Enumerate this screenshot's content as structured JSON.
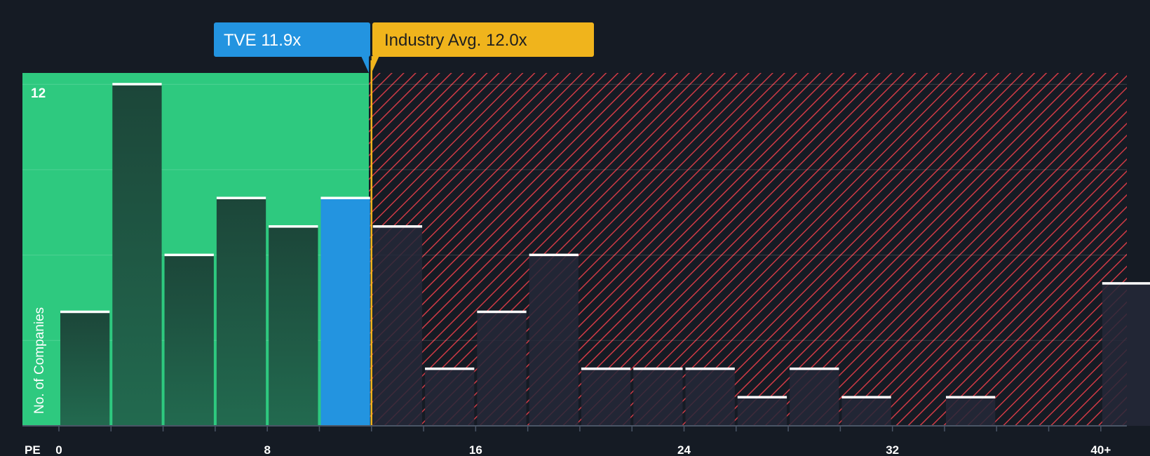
{
  "chart_data": {
    "type": "bar",
    "title": "",
    "xlabel": "PE",
    "ylabel": "No. of Companies",
    "bin_width": 2,
    "bins_start": [
      0,
      2,
      4,
      6,
      8,
      10,
      12,
      14,
      16,
      18,
      20,
      22,
      24,
      26,
      28,
      30,
      32,
      34,
      36,
      38,
      40
    ],
    "values": [
      4,
      12,
      6,
      8,
      7,
      8,
      7,
      2,
      4,
      6,
      2,
      2,
      2,
      1,
      2,
      1,
      0,
      1,
      0,
      0,
      5
    ],
    "highlight_index": 5,
    "x_ticks": [
      {
        "value": 0,
        "label": "0"
      },
      {
        "value": 8,
        "label": "8"
      },
      {
        "value": 16,
        "label": "16"
      },
      {
        "value": 24,
        "label": "24"
      },
      {
        "value": 32,
        "label": "32"
      },
      {
        "value": 40,
        "label": "40+"
      }
    ],
    "y_ticks": [
      {
        "value": 12,
        "label": "12"
      }
    ],
    "ylim": [
      0,
      12.4
    ],
    "xlim": [
      -1.4,
      41
    ],
    "company": {
      "name": "TVE",
      "pe": 11.9,
      "label": "TVE 11.9x"
    },
    "industry": {
      "name": "Industry Avg.",
      "pe": 12.0,
      "label": "Industry Avg. 12.0x"
    },
    "colors": {
      "background": "#151b24",
      "undervalued_zone": "#2ec97f",
      "bar_dark": "#1e4b3f",
      "bar_highlight": "#2394e0",
      "overvalued_hatch": "#cf3a45",
      "overvalued_bar": "#252838",
      "industry_marker": "#f0b41c",
      "cap": "#ffffff"
    }
  }
}
